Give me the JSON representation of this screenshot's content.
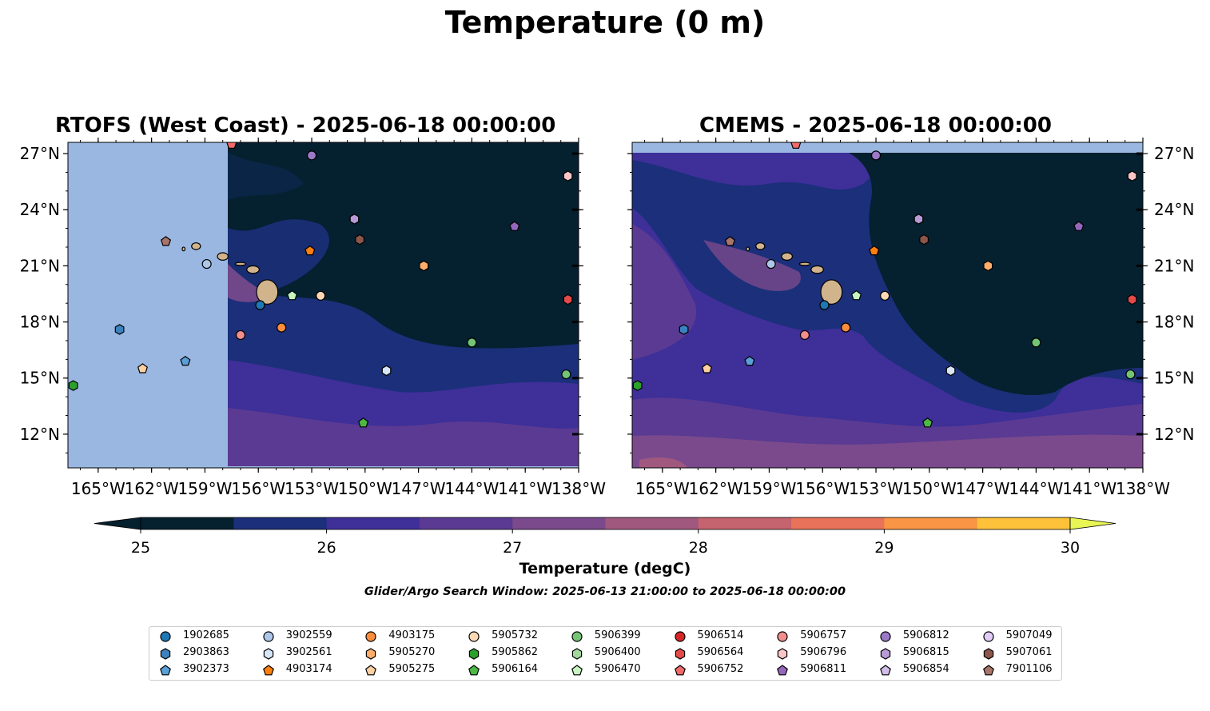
{
  "title": "Temperature (0 m)",
  "panels": [
    {
      "id": "rtofs",
      "title": "RTOFS (West Coast) - 2025-06-18 00:00:00"
    },
    {
      "id": "cmems",
      "title": "CMEMS - 2025-06-18 00:00:00"
    }
  ],
  "axes": {
    "x_ticks": [
      "165°W",
      "162°W",
      "159°W",
      "156°W",
      "153°W",
      "150°W",
      "147°W",
      "144°W",
      "141°W",
      "138°W"
    ],
    "x_values": [
      -165,
      -162,
      -159,
      -156,
      -153,
      -150,
      -147,
      -144,
      -141,
      -138
    ],
    "y_ticks": [
      "27°N",
      "24°N",
      "21°N",
      "18°N",
      "15°N",
      "12°N"
    ],
    "y_values": [
      27,
      24,
      21,
      18,
      15,
      12
    ],
    "lon_range": [
      -166.7,
      -138
    ],
    "lat_range": [
      10.2,
      27.6
    ]
  },
  "colorbar": {
    "label": "Temperature (degC)",
    "ticks": [
      "25",
      "26",
      "27",
      "28",
      "29",
      "30"
    ],
    "tick_values": [
      25,
      26,
      27,
      28,
      29,
      30
    ],
    "range": [
      25,
      30
    ],
    "step": 0.5,
    "colors": [
      "#05202f",
      "#1b2f7a",
      "#3e2f99",
      "#5a3a92",
      "#7a4a8c",
      "#a0587f",
      "#c5636e",
      "#e8735a",
      "#f99544",
      "#fdc23a",
      "#e8f554"
    ],
    "extend": "both"
  },
  "search_window": "Glider/Argo Search Window: 2025-06-13 21:00:00 to 2025-06-18 00:00:00",
  "legend": [
    {
      "id": "1902685",
      "color": "#1f77b4",
      "marker": "circle"
    },
    {
      "id": "2903863",
      "color": "#3b83c0",
      "marker": "hexagon"
    },
    {
      "id": "3902373",
      "color": "#5a9fd6",
      "marker": "pentagon"
    },
    {
      "id": "3902559",
      "color": "#aec7e8",
      "marker": "circle"
    },
    {
      "id": "3902561",
      "color": "#d6e6f7",
      "marker": "hexagon"
    },
    {
      "id": "4903174",
      "color": "#ff7f0e",
      "marker": "pentagon"
    },
    {
      "id": "4903175",
      "color": "#fd8d3c",
      "marker": "circle"
    },
    {
      "id": "5905270",
      "color": "#fdae6b",
      "marker": "hexagon"
    },
    {
      "id": "5905275",
      "color": "#fdd0a2",
      "marker": "pentagon"
    },
    {
      "id": "5905732",
      "color": "#fdd9b5",
      "marker": "circle"
    },
    {
      "id": "5905862",
      "color": "#2ca02c",
      "marker": "hexagon"
    },
    {
      "id": "5906164",
      "color": "#4cb944",
      "marker": "pentagon"
    },
    {
      "id": "5906399",
      "color": "#74c476",
      "marker": "circle"
    },
    {
      "id": "5906400",
      "color": "#a1d99b",
      "marker": "hexagon"
    },
    {
      "id": "5906470",
      "color": "#c7f5c0",
      "marker": "pentagon"
    },
    {
      "id": "5906514",
      "color": "#d62728",
      "marker": "circle"
    },
    {
      "id": "5906564",
      "color": "#e34a4a",
      "marker": "hexagon"
    },
    {
      "id": "5906752",
      "color": "#f06a6a",
      "marker": "pentagon"
    },
    {
      "id": "5906757",
      "color": "#f28e8e",
      "marker": "circle"
    },
    {
      "id": "5906796",
      "color": "#f9c6c6",
      "marker": "hexagon"
    },
    {
      "id": "5906811",
      "color": "#9467bd",
      "marker": "pentagon"
    },
    {
      "id": "5906812",
      "color": "#9c79c7",
      "marker": "circle"
    },
    {
      "id": "5906815",
      "color": "#b79ad6",
      "marker": "hexagon"
    },
    {
      "id": "5906854",
      "color": "#d2bde8",
      "marker": "pentagon"
    },
    {
      "id": "5907049",
      "color": "#e0ccf5",
      "marker": "circle"
    },
    {
      "id": "5907061",
      "color": "#8c564b",
      "marker": "hexagon"
    },
    {
      "id": "7901106",
      "color": "#a9756a",
      "marker": "pentagon"
    }
  ],
  "floats": [
    {
      "id": "1902685",
      "lon": -155.9,
      "lat": 18.9
    },
    {
      "id": "2903863",
      "lon": -163.8,
      "lat": 17.6
    },
    {
      "id": "3902373",
      "lon": -160.1,
      "lat": 15.9
    },
    {
      "id": "3902559",
      "lon": -158.9,
      "lat": 21.1
    },
    {
      "id": "3902561",
      "lon": -148.8,
      "lat": 15.4
    },
    {
      "id": "4903174",
      "lon": -153.1,
      "lat": 21.8
    },
    {
      "id": "4903175",
      "lon": -154.7,
      "lat": 17.7
    },
    {
      "id": "5905270",
      "lon": -146.7,
      "lat": 21.0
    },
    {
      "id": "5905275",
      "lon": -162.5,
      "lat": 15.5
    },
    {
      "id": "5905732",
      "lon": -152.5,
      "lat": 19.4
    },
    {
      "id": "5905862",
      "lon": -166.4,
      "lat": 14.6
    },
    {
      "id": "5906164",
      "lon": -150.1,
      "lat": 12.6
    },
    {
      "id": "5906399",
      "lon": -144.0,
      "lat": 16.9
    },
    {
      "id": "5906470",
      "lon": -154.1,
      "lat": 19.4
    },
    {
      "id": "5906564",
      "lon": -138.6,
      "lat": 19.2
    },
    {
      "id": "5906752",
      "lon": -157.5,
      "lat": 27.5
    },
    {
      "id": "5906757",
      "lon": -157.0,
      "lat": 17.3
    },
    {
      "id": "5906796",
      "lon": -138.6,
      "lat": 25.8
    },
    {
      "id": "5906811",
      "lon": -141.6,
      "lat": 23.1
    },
    {
      "id": "5906812",
      "lon": -153.0,
      "lat": 26.9
    },
    {
      "id": "5906815",
      "lon": -150.6,
      "lat": 23.5
    },
    {
      "id": "5906399b",
      "lon": -138.7,
      "lat": 15.2
    },
    {
      "id": "5907061",
      "lon": -150.3,
      "lat": 22.4
    },
    {
      "id": "7901106",
      "lon": -161.2,
      "lat": 22.3
    }
  ],
  "islands": [
    {
      "name": "Hawaii",
      "lon": -155.5,
      "lat": 19.6,
      "rx": 0.6,
      "ry": 0.65
    },
    {
      "name": "Maui",
      "lon": -156.3,
      "lat": 20.8,
      "rx": 0.35,
      "ry": 0.2
    },
    {
      "name": "Molokai",
      "lon": -157.0,
      "lat": 21.1,
      "rx": 0.3,
      "ry": 0.08
    },
    {
      "name": "Oahu",
      "lon": -158.0,
      "lat": 21.5,
      "rx": 0.3,
      "ry": 0.2
    },
    {
      "name": "Kauai",
      "lon": -159.5,
      "lat": 22.05,
      "rx": 0.25,
      "ry": 0.18
    },
    {
      "name": "Niihau",
      "lon": -160.2,
      "lat": 21.9,
      "rx": 0.08,
      "ry": 0.1
    }
  ]
}
